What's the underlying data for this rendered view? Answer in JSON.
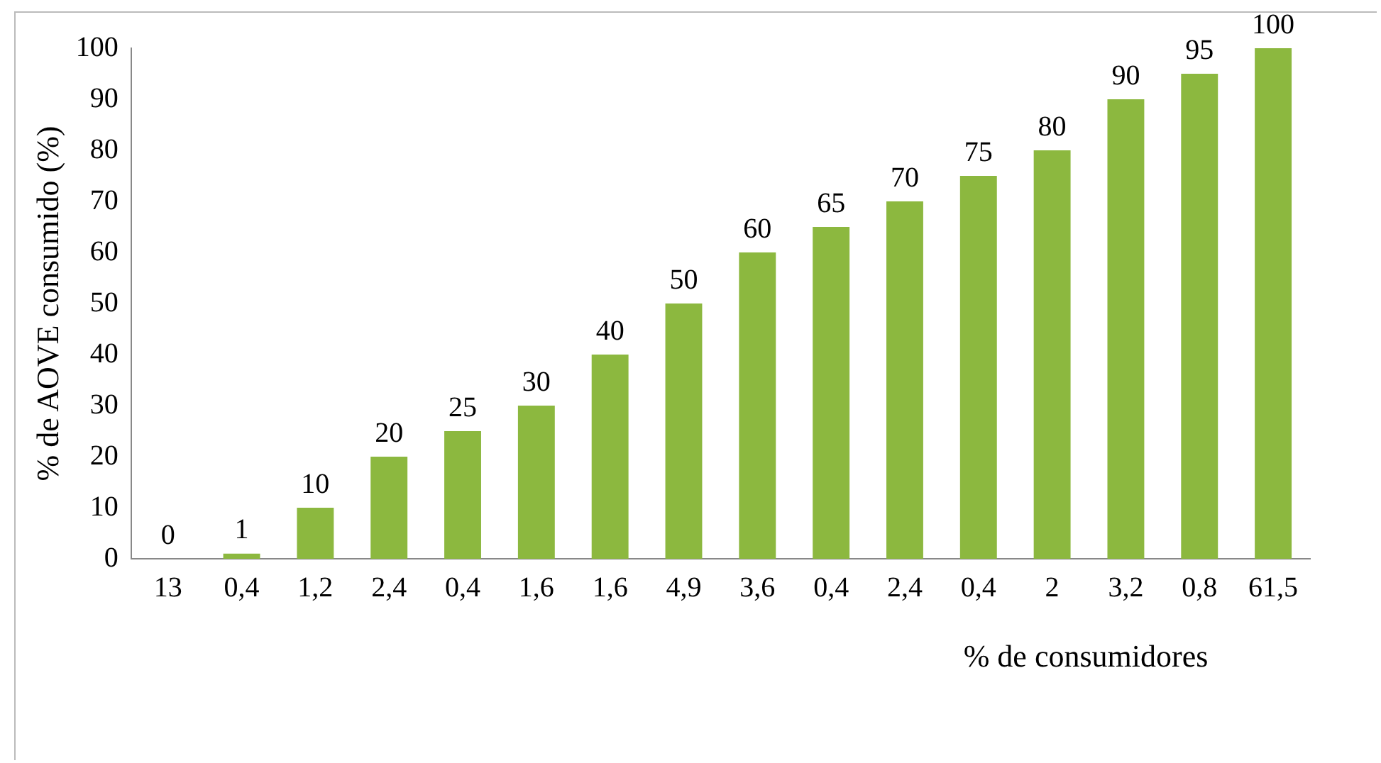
{
  "chart_data": {
    "type": "bar",
    "xlabel": "% de consumidores",
    "ylabel": "% de AOVE consumido (%)",
    "categories": [
      "13",
      "0,4",
      "1,2",
      "2,4",
      "0,4",
      "1,6",
      "1,6",
      "4,9",
      "3,6",
      "0,4",
      "2,4",
      "0,4",
      "2",
      "3,2",
      "0,8",
      "61,5"
    ],
    "values": [
      0,
      1,
      10,
      20,
      25,
      30,
      40,
      50,
      60,
      65,
      70,
      75,
      80,
      90,
      95,
      100
    ],
    "color": "#8cb83f",
    "ylim": [
      0,
      100
    ],
    "yticks": [
      0,
      10,
      20,
      30,
      40,
      50,
      60,
      70,
      80,
      90,
      100
    ],
    "grid": false,
    "data_labels": true,
    "legend": false
  }
}
